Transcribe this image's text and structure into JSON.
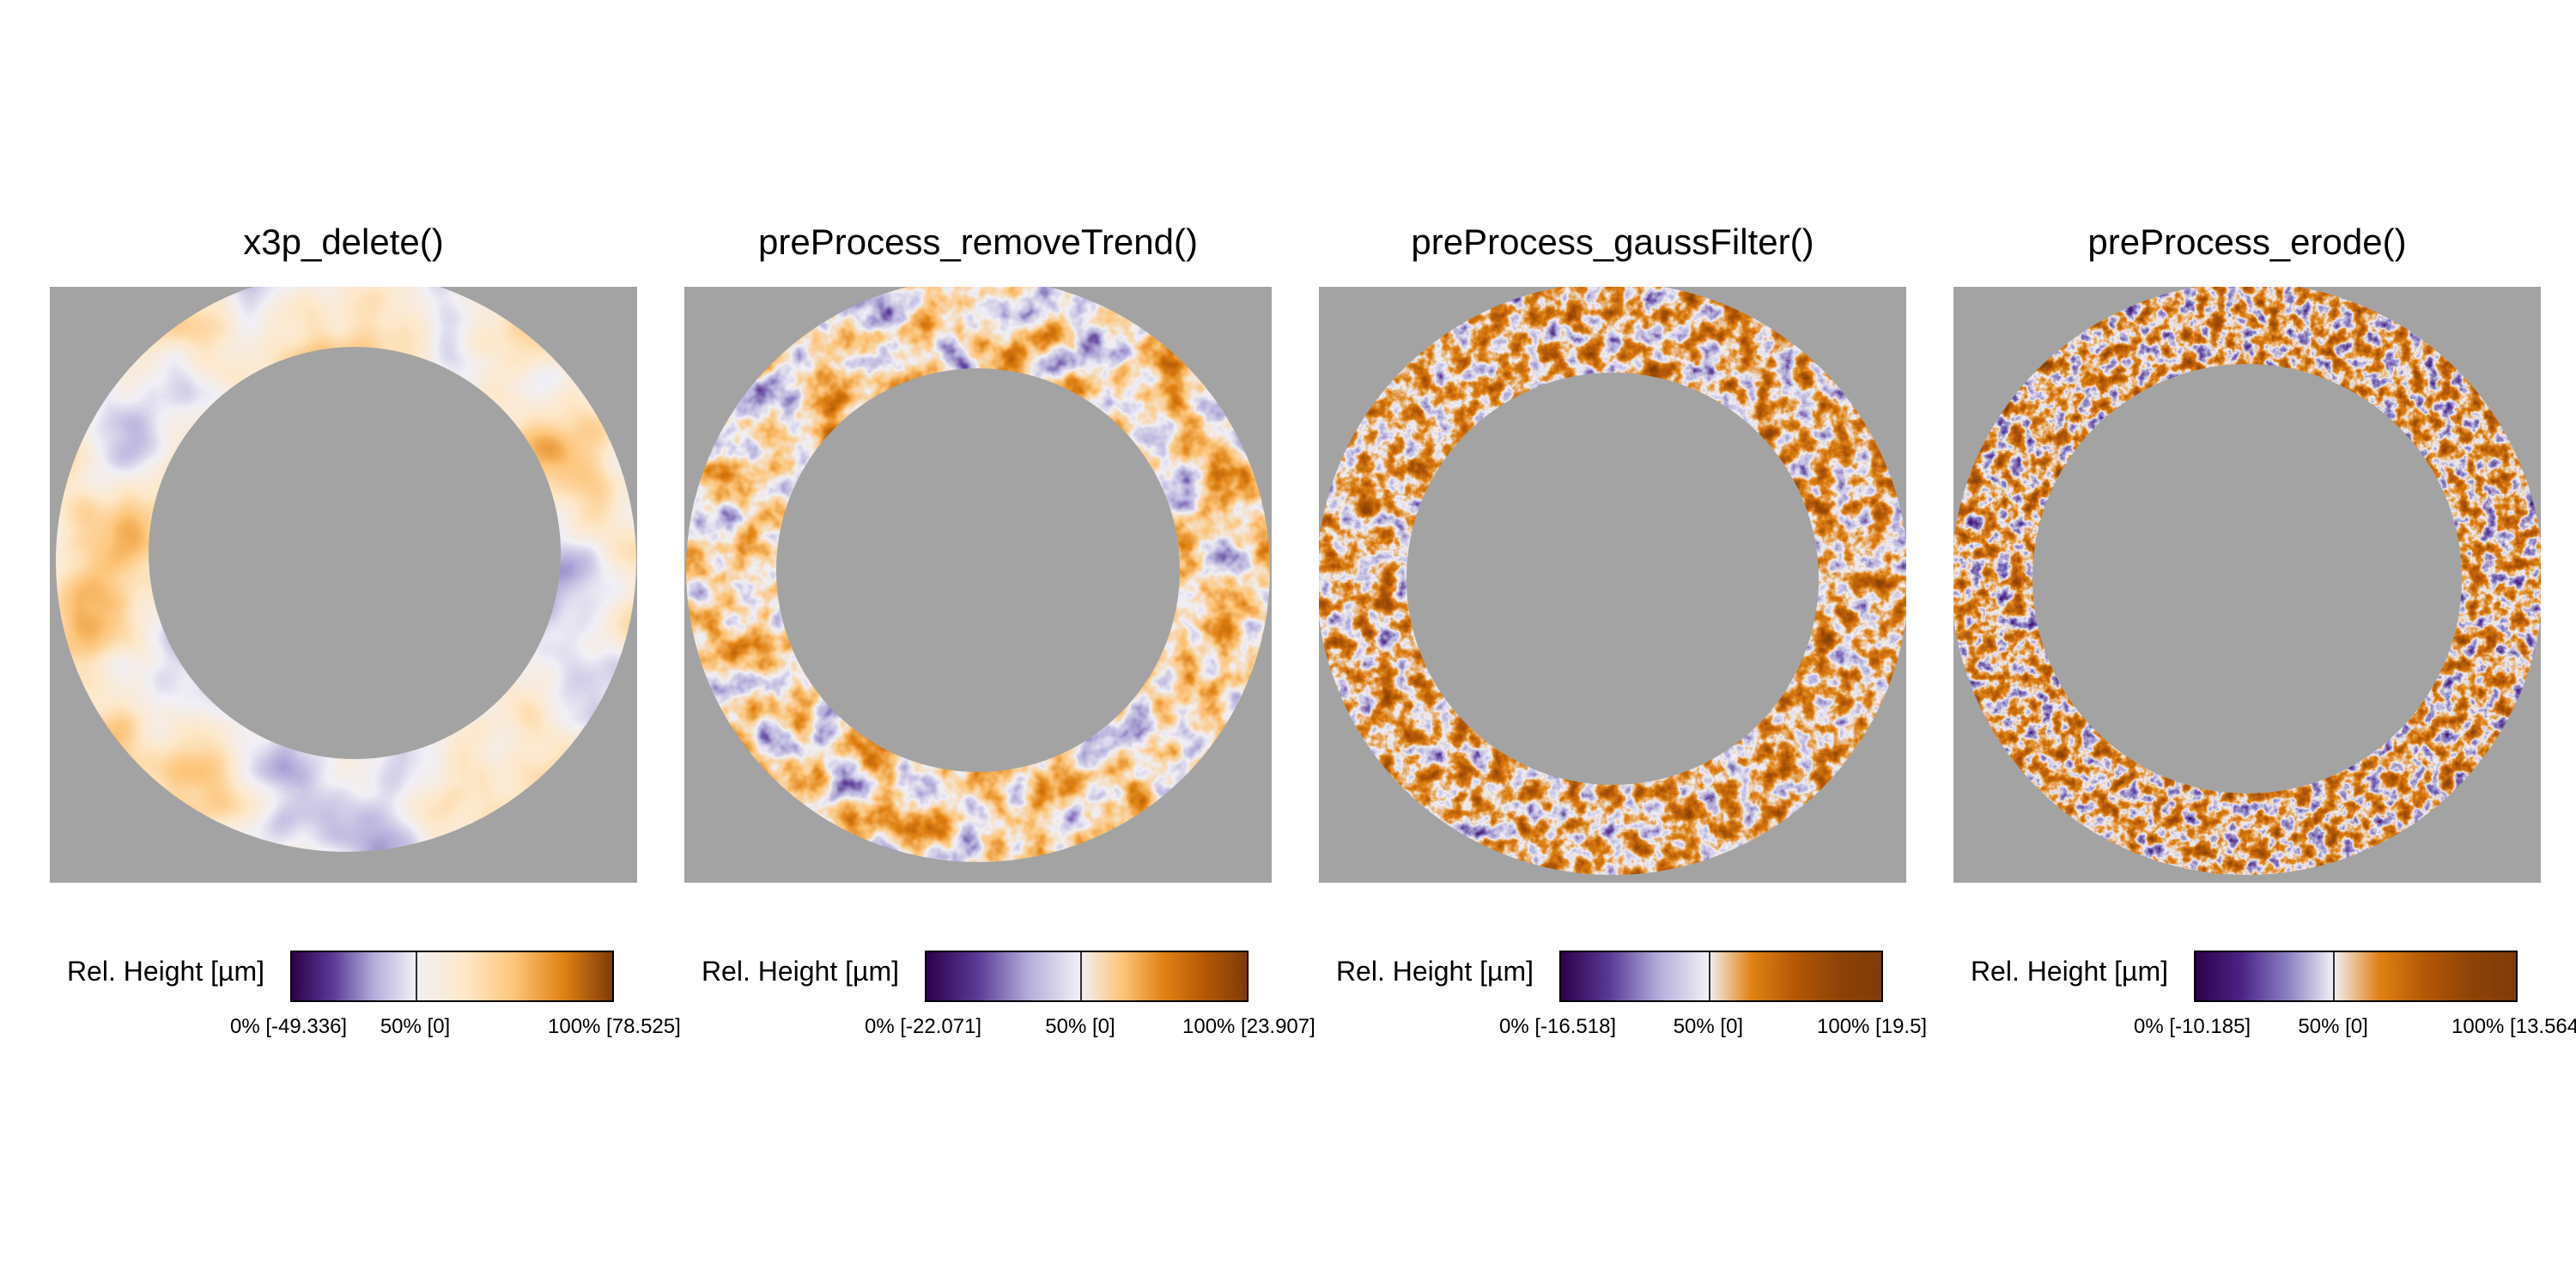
{
  "panels": [
    {
      "title": "x3p_delete()",
      "legend": {
        "label": "Rel. Height [µm]",
        "min_label": "0% [-49.336]",
        "mid_label": "50% [0]",
        "max_label": "100% [78.525]"
      },
      "colors": [
        "#2d004b",
        "#5a3a96",
        "#b4aedb",
        "#f1f0f6",
        "#fee8c9",
        "#fdc57a",
        "#e08214",
        "#7f3b08"
      ],
      "mid_fraction": 0.386
    },
    {
      "title": "preProcess_removeTrend()",
      "legend": {
        "label": "Rel. Height [µm]",
        "min_label": "0% [-22.071]",
        "mid_label": "50% [0]",
        "max_label": "100% [23.907]"
      },
      "colors": [
        "#2d004b",
        "#5a3a96",
        "#b4aedb",
        "#f1f0f6",
        "#fdc57a",
        "#e08214",
        "#b35806",
        "#7f3b08"
      ],
      "mid_fraction": 0.48
    },
    {
      "title": "preProcess_gaussFilter()",
      "legend": {
        "label": "Rel. Height [µm]",
        "min_label": "0% [-16.518]",
        "mid_label": "50% [0]",
        "max_label": "100% [19.5]"
      },
      "colors": [
        "#2d004b",
        "#5a3a96",
        "#b4aedb",
        "#f1f0f6",
        "#e08214",
        "#b35806",
        "#8e4307",
        "#7f3b08"
      ],
      "mid_fraction": 0.46
    },
    {
      "title": "preProcess_erode()",
      "legend": {
        "label": "Rel. Height [µm]",
        "min_label": "0% [-10.185]",
        "mid_label": "50% [0]",
        "max_label": "100% [13.564"
      },
      "colors": [
        "#2d004b",
        "#4b2385",
        "#8a7fc2",
        "#f1f0f6",
        "#e08214",
        "#b35806",
        "#8e4307",
        "#7f3b08"
      ],
      "mid_fraction": 0.43
    }
  ],
  "background_color": "#a3a3a3"
}
